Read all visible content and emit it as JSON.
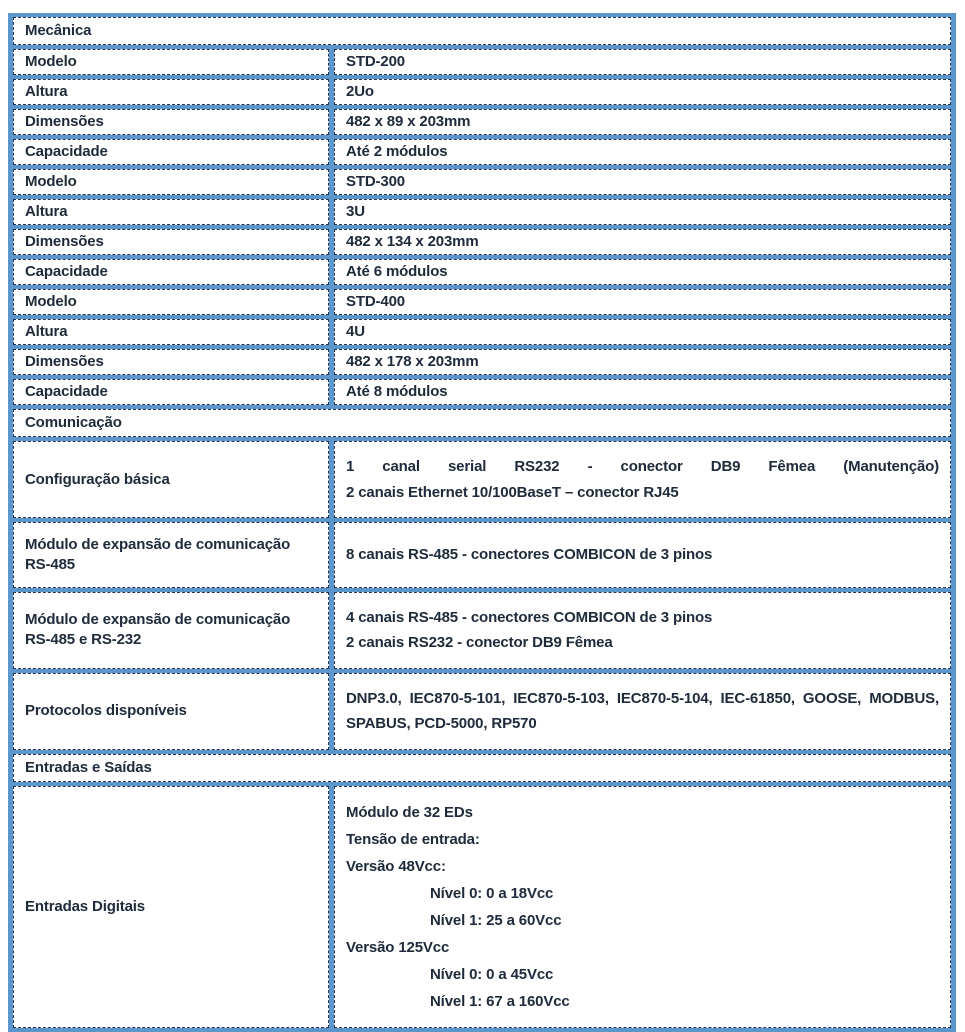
{
  "colors": {
    "grid_blue": "#5b96cc",
    "cell_border": "#25354d",
    "text": "#202b3b"
  },
  "table": {
    "rows": [
      {
        "type": "section",
        "label": "Mecânica"
      },
      {
        "type": "kv",
        "label": "Modelo",
        "value": "STD-200"
      },
      {
        "type": "kv",
        "label": "Altura",
        "value": "2Uo"
      },
      {
        "type": "kv",
        "label": "Dimensões",
        "value": "482 x 89 x 203mm"
      },
      {
        "type": "kv",
        "label": "Capacidade",
        "value": "Até 2 módulos"
      },
      {
        "type": "kv",
        "label": "Modelo",
        "value": "STD-300"
      },
      {
        "type": "kv",
        "label": "Altura",
        "value": "3U"
      },
      {
        "type": "kv",
        "label": "Dimensões",
        "value": "482 x 134 x 203mm"
      },
      {
        "type": "kv",
        "label": "Capacidade",
        "value": "Até 6 módulos"
      },
      {
        "type": "kv",
        "label": "Modelo",
        "value": "STD-400"
      },
      {
        "type": "kv",
        "label": "Altura",
        "value": "4U"
      },
      {
        "type": "kv",
        "label": "Dimensões",
        "value": "482 x 178 x 203mm"
      },
      {
        "type": "kv",
        "label": "Capacidade",
        "value": "Até 8 módulos"
      },
      {
        "type": "section",
        "label": "Comunicação"
      },
      {
        "type": "multi",
        "label": "Configuração básica",
        "lines": [
          {
            "text": "1 canal serial RS232 - conector DB9 Fêmea (Manutenção)",
            "stretch": true
          },
          {
            "text": "2 canais Ethernet 10/100BaseT – conector RJ45"
          }
        ]
      },
      {
        "type": "multi",
        "label": "Módulo de expansão de comunicação RS-485",
        "lines": [
          {
            "text": "8 canais RS-485 - conectores COMBICON de 3 pinos"
          }
        ]
      },
      {
        "type": "multi",
        "label": "Módulo de expansão de comunicação RS-485 e RS-232",
        "lines": [
          {
            "text": "4 canais RS-485 - conectores COMBICON de 3 pinos"
          },
          {
            "text": "2 canais RS232 - conector DB9 Fêmea"
          }
        ]
      },
      {
        "type": "multi",
        "label": "Protocolos disponíveis",
        "lines": [
          {
            "text": "DNP3.0, IEC870-5-101, IEC870-5-103, IEC870-5-104, IEC-61850, GOOSE, MODBUS, SPABUS, PCD-5000, RP570",
            "wrap": true
          }
        ]
      },
      {
        "type": "section",
        "label": "Entradas e Saídas"
      },
      {
        "type": "multi",
        "label": "Entradas Digitais",
        "lines": [
          {
            "text": "Módulo de 32 EDs"
          },
          {
            "text": "Tensão de entrada:"
          },
          {
            "text": "Versão 48Vcc:"
          },
          {
            "text": "Nível 0: 0 a 18Vcc",
            "indent": true
          },
          {
            "text": "Nível 1: 25 a 60Vcc",
            "indent": true
          },
          {
            "text": "Versão 125Vcc"
          },
          {
            "text": "Nível 0: 0 a 45Vcc",
            "indent": true
          },
          {
            "text": "Nível 1: 67 a 160Vcc",
            "indent": true
          }
        ]
      }
    ]
  }
}
